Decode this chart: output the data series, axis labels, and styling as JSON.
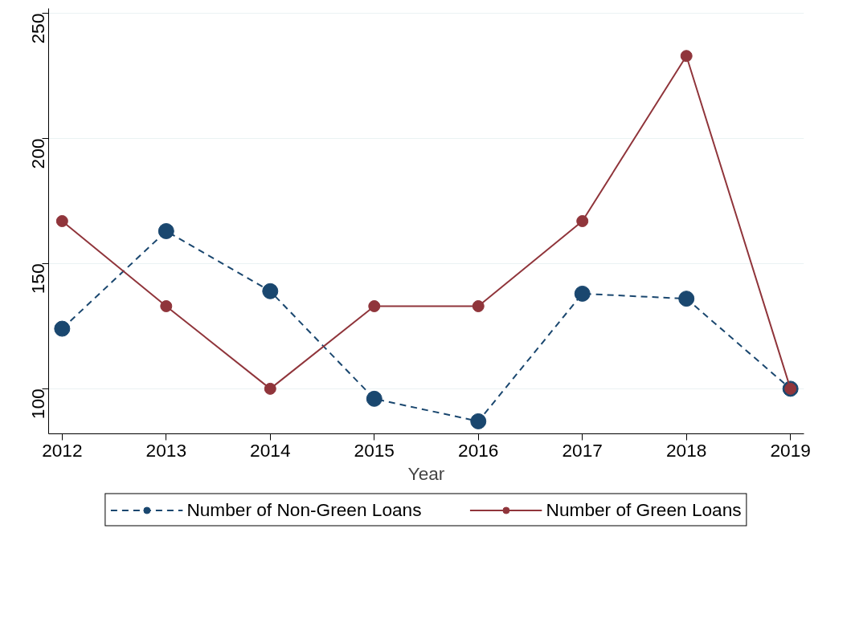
{
  "chart_data": {
    "type": "line",
    "xlabel": "Year",
    "x": [
      2012,
      2013,
      2014,
      2015,
      2016,
      2017,
      2018,
      2019
    ],
    "xlim": [
      2011.87,
      2019.13
    ],
    "xticks": [
      2012,
      2013,
      2014,
      2015,
      2016,
      2017,
      2018,
      2019
    ],
    "ylim": [
      82,
      252
    ],
    "yticks": [
      100,
      150,
      200,
      250
    ],
    "grid": "y",
    "legend": "bottom",
    "marker": "circle",
    "series": [
      {
        "name": "Number of Non-Green Loans",
        "color": "#1a476f",
        "line_style": "dashed",
        "values": [
          124,
          163,
          139,
          96,
          87,
          138,
          136,
          100
        ]
      },
      {
        "name": "Number of Green Loans",
        "color": "#90353b",
        "line_style": "solid",
        "values": [
          167,
          133,
          100,
          133,
          133,
          167,
          233,
          100
        ]
      }
    ]
  }
}
